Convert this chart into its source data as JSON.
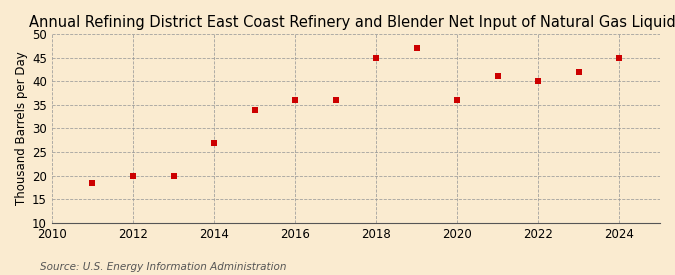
{
  "title": "Annual Refining District East Coast Refinery and Blender Net Input of Natural Gas Liquids",
  "ylabel": "Thousand Barrels per Day",
  "source": "Source: U.S. Energy Information Administration",
  "background_color": "#faebd0",
  "x_values": [
    2011,
    2012,
    2013,
    2014,
    2015,
    2016,
    2017,
    2018,
    2019,
    2020,
    2021,
    2022,
    2023,
    2024
  ],
  "y_values": [
    18.5,
    20.0,
    20.0,
    27.0,
    34.0,
    36.0,
    36.0,
    45.0,
    47.0,
    36.0,
    41.0,
    40.0,
    42.0,
    45.0
  ],
  "marker_color": "#cc0000",
  "marker_size": 4,
  "marker_style": "s",
  "xlim": [
    2010,
    2025
  ],
  "ylim": [
    10,
    50
  ],
  "yticks": [
    10,
    15,
    20,
    25,
    30,
    35,
    40,
    45,
    50
  ],
  "xticks": [
    2010,
    2012,
    2014,
    2016,
    2018,
    2020,
    2022,
    2024
  ],
  "grid_color": "#999999",
  "title_fontsize": 10.5,
  "axis_fontsize": 8.5,
  "source_fontsize": 7.5,
  "ylabel_fontsize": 8.5
}
